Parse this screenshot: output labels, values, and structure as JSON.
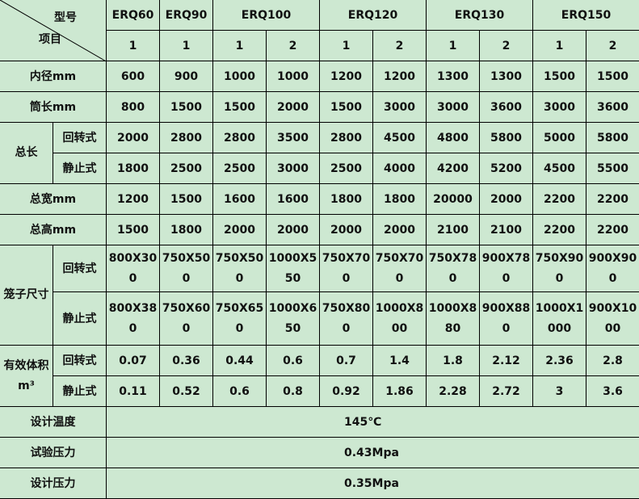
{
  "header": {
    "corner_top": "型号",
    "corner_bottom": "项目",
    "models": [
      {
        "name": "ERQ60",
        "variants": [
          "1"
        ]
      },
      {
        "name": "ERQ90",
        "variants": [
          "1"
        ]
      },
      {
        "name": "ERQ100",
        "variants": [
          "1",
          "2"
        ]
      },
      {
        "name": "ERQ120",
        "variants": [
          "1",
          "2"
        ]
      },
      {
        "name": "ERQ130",
        "variants": [
          "1",
          "2"
        ]
      },
      {
        "name": "ERQ150",
        "variants": [
          "1",
          "2"
        ]
      }
    ]
  },
  "rows": [
    {
      "label": "内径mm",
      "values": [
        "600",
        "900",
        "1000",
        "1000",
        "1200",
        "1200",
        "1300",
        "1300",
        "1500",
        "1500"
      ]
    },
    {
      "label": "筒长mm",
      "values": [
        "800",
        "1500",
        "1500",
        "2000",
        "1500",
        "3000",
        "3000",
        "3600",
        "3000",
        "3600"
      ]
    },
    {
      "group": "总长",
      "sub": [
        {
          "label": "回转式",
          "values": [
            "2000",
            "2800",
            "2800",
            "3500",
            "2800",
            "4500",
            "4800",
            "5800",
            "5000",
            "5800"
          ]
        },
        {
          "label": "静止式",
          "values": [
            "1800",
            "2500",
            "2500",
            "3000",
            "2500",
            "4000",
            "4200",
            "5200",
            "4500",
            "5500"
          ]
        }
      ]
    },
    {
      "label": "总宽mm",
      "values": [
        "1200",
        "1500",
        "1600",
        "1600",
        "1800",
        "1800",
        "20000",
        "2000",
        "2200",
        "2200"
      ]
    },
    {
      "label": "总高mm",
      "values": [
        "1500",
        "1800",
        "2000",
        "2000",
        "2000",
        "2000",
        "2100",
        "2100",
        "2200",
        "2200"
      ]
    },
    {
      "group": "笼子尺寸",
      "wrap": true,
      "sub": [
        {
          "label": "回转式",
          "values": [
            "800X300",
            "750X500",
            "750X500",
            "1000X550",
            "750X700",
            "750X700",
            "750X780",
            "900X780",
            "750X900",
            "900X900"
          ]
        },
        {
          "label": "静止式",
          "values": [
            "800X380",
            "750X600",
            "750X650",
            "1000X650",
            "750X800",
            "1000X800",
            "1000X880",
            "900X880",
            "1000X1000",
            "900X1000"
          ]
        }
      ]
    },
    {
      "group": "有效体积m³",
      "sub": [
        {
          "label": "回转式",
          "values": [
            "0.07",
            "0.36",
            "0.44",
            "0.6",
            "0.7",
            "1.4",
            "1.8",
            "2.12",
            "2.36",
            "2.8"
          ]
        },
        {
          "label": "静止式",
          "values": [
            "0.11",
            "0.52",
            "0.6",
            "0.8",
            "0.92",
            "1.86",
            "2.28",
            "2.72",
            "3",
            "3.6"
          ]
        }
      ]
    },
    {
      "label": "设计温度",
      "value": "145℃"
    },
    {
      "label": "试验压力",
      "value": "0.43Mpa"
    },
    {
      "label": "设计压力",
      "value": "0.35Mpa"
    }
  ]
}
